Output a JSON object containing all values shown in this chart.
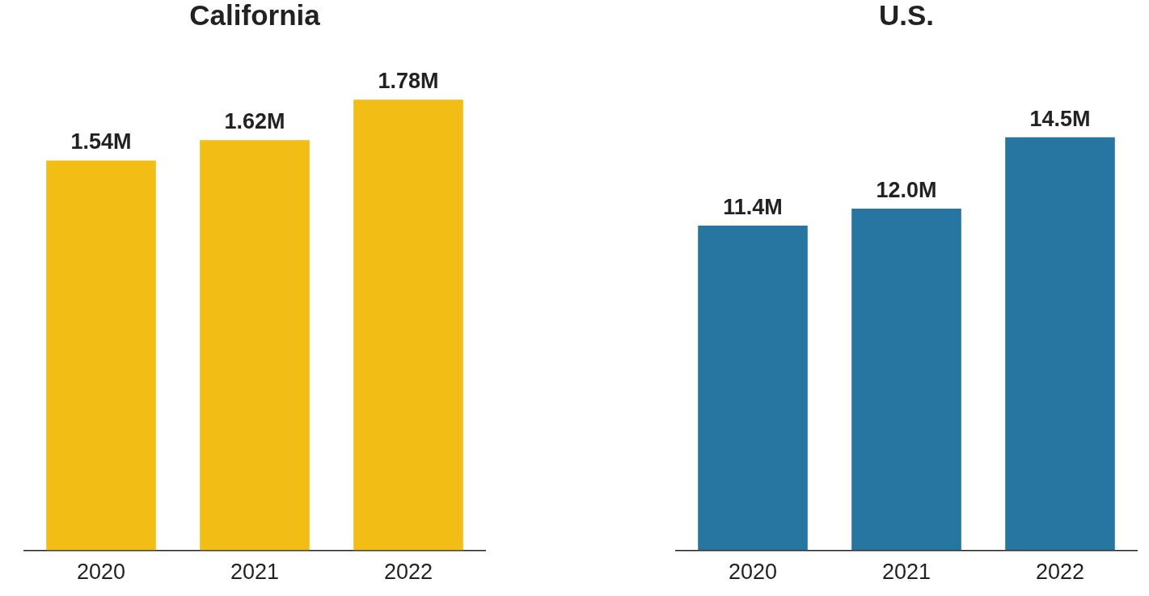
{
  "chart_data": [
    {
      "type": "bar",
      "title": "California",
      "categories": [
        "2020",
        "2021",
        "2022"
      ],
      "values": [
        1.54,
        1.62,
        1.78
      ],
      "value_labels": [
        "1.54M",
        "1.62M",
        "1.78M"
      ],
      "color": "#f2bd15",
      "tick_labels": "x"
    },
    {
      "type": "bar",
      "title": "U.S.",
      "categories": [
        "2020",
        "2021",
        "2022"
      ],
      "values": [
        11.4,
        12.0,
        14.5
      ],
      "value_labels": [
        "11.4M",
        "12.0M",
        "14.5M"
      ],
      "color": "#2676a1",
      "tick_labels": "x"
    }
  ]
}
